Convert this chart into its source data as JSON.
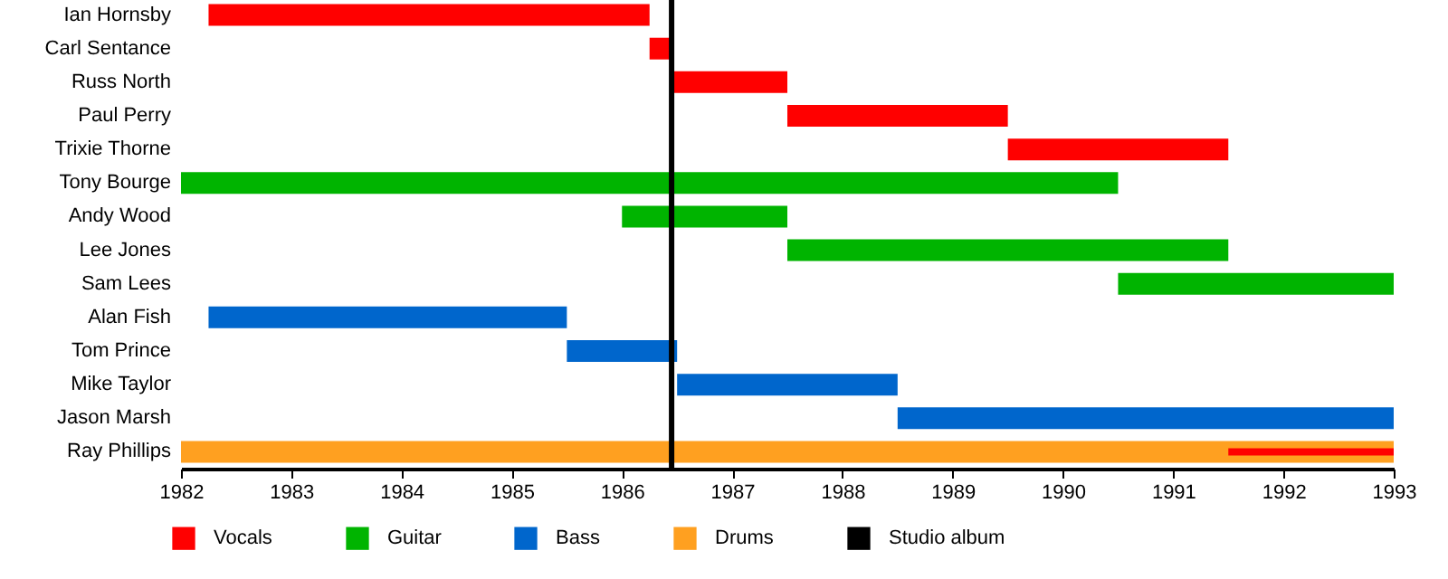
{
  "chart_data": {
    "type": "bar",
    "orientation": "horizontal",
    "categories": [
      "Ian Hornsby",
      "Carl Sentance",
      "Russ North",
      "Paul Perry",
      "Trixie Thorne",
      "Tony Bourge",
      "Andy Wood",
      "Lee Jones",
      "Sam Lees",
      "Alan Fish",
      "Tom Prince",
      "Mike Taylor",
      "Jason Marsh",
      "Ray Phillips"
    ],
    "series": [
      {
        "name": "Vocals",
        "color": "#ff0000",
        "base": [
          1982.25,
          1986.25,
          1986.45,
          1987.5,
          1989.5,
          null,
          null,
          null,
          null,
          null,
          null,
          null,
          null,
          1991.5
        ],
        "values": [
          4,
          0.2,
          1.05,
          2,
          2,
          null,
          null,
          null,
          null,
          null,
          null,
          null,
          null,
          1.5
        ]
      },
      {
        "name": "Guitar",
        "color": "#00b400",
        "base": [
          null,
          null,
          null,
          null,
          null,
          1982,
          1986,
          1987.5,
          1990.5,
          null,
          null,
          null,
          null,
          null
        ],
        "values": [
          null,
          null,
          null,
          null,
          null,
          8.5,
          1.5,
          4,
          2.5,
          null,
          null,
          null,
          null,
          null
        ]
      },
      {
        "name": "Bass",
        "color": "#0066cc",
        "base": [
          null,
          null,
          null,
          null,
          null,
          null,
          null,
          null,
          null,
          1982.25,
          1985.5,
          1986.5,
          1988.5,
          null
        ],
        "values": [
          null,
          null,
          null,
          null,
          null,
          null,
          null,
          null,
          null,
          3.25,
          1,
          2,
          4.5,
          null
        ]
      },
      {
        "name": "Drums",
        "color": "#ffa020",
        "base": [
          null,
          null,
          null,
          null,
          null,
          null,
          null,
          null,
          null,
          null,
          null,
          null,
          null,
          1982
        ],
        "values": [
          null,
          null,
          null,
          null,
          null,
          null,
          null,
          null,
          null,
          null,
          null,
          null,
          null,
          11
        ]
      }
    ],
    "ref_lines": [
      {
        "axis": "x",
        "value": 1986.45,
        "label": "Studio album",
        "color": "#000000"
      }
    ],
    "xlim": [
      1982,
      1993
    ],
    "xticks": [
      1982,
      1983,
      1984,
      1985,
      1986,
      1987,
      1988,
      1989,
      1990,
      1991,
      1992,
      1993
    ],
    "legend": "bottom"
  }
}
